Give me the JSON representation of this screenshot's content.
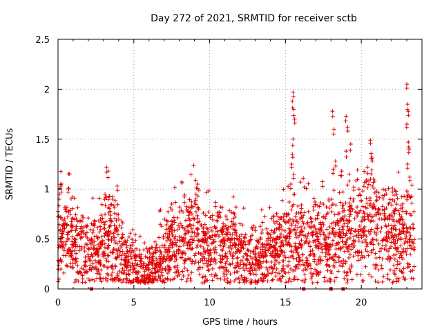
{
  "chart_data": {
    "type": "scatter",
    "title": "Day 272 of 2021, SRMTID for receiver sctb",
    "xlabel": "GPS time / hours",
    "ylabel": "SRMTID / TECUs",
    "xlim": [
      0,
      24
    ],
    "ylim": [
      0,
      2.5
    ],
    "xticks": [
      0,
      5,
      10,
      15,
      20
    ],
    "yticks": [
      0,
      0.5,
      1,
      1.5,
      2,
      2.5
    ],
    "xtick_labels": [
      "0",
      "5",
      "10",
      "15",
      "20"
    ],
    "ytick_labels": [
      "0",
      "0.5",
      "1",
      "1.5",
      "2",
      "2.5"
    ],
    "grid": true,
    "marker": "+",
    "series_color": "#e00000",
    "gap_markers_x": [
      2.2,
      16.2,
      18.0,
      18.8
    ],
    "trend": [
      [
        0.0,
        0.6
      ],
      [
        1.0,
        0.45
      ],
      [
        2.0,
        0.35
      ],
      [
        3.0,
        0.45
      ],
      [
        3.5,
        0.55
      ],
      [
        4.0,
        0.35
      ],
      [
        4.5,
        0.25
      ],
      [
        5.0,
        0.22
      ],
      [
        5.5,
        0.17
      ],
      [
        6.0,
        0.2
      ],
      [
        6.5,
        0.25
      ],
      [
        7.0,
        0.35
      ],
      [
        7.5,
        0.45
      ],
      [
        8.0,
        0.45
      ],
      [
        8.5,
        0.5
      ],
      [
        9.0,
        0.55
      ],
      [
        9.5,
        0.4
      ],
      [
        10.0,
        0.45
      ],
      [
        10.5,
        0.5
      ],
      [
        11.0,
        0.45
      ],
      [
        11.5,
        0.38
      ],
      [
        12.0,
        0.3
      ],
      [
        13.0,
        0.28
      ],
      [
        14.0,
        0.38
      ],
      [
        15.0,
        0.45
      ],
      [
        16.0,
        0.5
      ],
      [
        17.0,
        0.45
      ],
      [
        18.0,
        0.48
      ],
      [
        19.0,
        0.55
      ],
      [
        20.0,
        0.6
      ],
      [
        21.0,
        0.65
      ],
      [
        22.0,
        0.55
      ],
      [
        23.0,
        0.55
      ],
      [
        23.5,
        0.5
      ]
    ],
    "spikes": [
      {
        "x": 0.1,
        "y": 0.95
      },
      {
        "x": 0.2,
        "y": 1.03
      },
      {
        "x": 0.7,
        "y": 1.01
      },
      {
        "x": 3.2,
        "y": 1.22
      },
      {
        "x": 3.3,
        "y": 1.18
      },
      {
        "x": 3.1,
        "y": 0.95
      },
      {
        "x": 3.9,
        "y": 1.03
      },
      {
        "x": 7.5,
        "y": 0.85
      },
      {
        "x": 9.2,
        "y": 1.05
      },
      {
        "x": 9.1,
        "y": 0.95
      },
      {
        "x": 15.5,
        "y": 1.97
      },
      {
        "x": 15.45,
        "y": 1.88
      },
      {
        "x": 15.55,
        "y": 1.8
      },
      {
        "x": 15.6,
        "y": 1.7
      },
      {
        "x": 15.5,
        "y": 1.5
      },
      {
        "x": 15.45,
        "y": 1.35
      },
      {
        "x": 15.4,
        "y": 1.25
      },
      {
        "x": 15.55,
        "y": 1.15
      },
      {
        "x": 15.35,
        "y": 1.05
      },
      {
        "x": 18.1,
        "y": 1.78
      },
      {
        "x": 18.2,
        "y": 1.6
      },
      {
        "x": 18.3,
        "y": 1.28
      },
      {
        "x": 18.15,
        "y": 1.2
      },
      {
        "x": 18.7,
        "y": 1.18
      },
      {
        "x": 19.0,
        "y": 1.73
      },
      {
        "x": 19.1,
        "y": 1.62
      },
      {
        "x": 19.0,
        "y": 1.38
      },
      {
        "x": 19.3,
        "y": 1.45
      },
      {
        "x": 19.2,
        "y": 1.15
      },
      {
        "x": 19.5,
        "y": 1.02
      },
      {
        "x": 20.4,
        "y": 1.22
      },
      {
        "x": 20.6,
        "y": 1.49
      },
      {
        "x": 20.7,
        "y": 1.32
      },
      {
        "x": 20.8,
        "y": 1.1
      },
      {
        "x": 20.5,
        "y": 1.08
      },
      {
        "x": 21.0,
        "y": 0.98
      },
      {
        "x": 23.0,
        "y": 2.05
      },
      {
        "x": 23.05,
        "y": 1.85
      },
      {
        "x": 23.1,
        "y": 1.78
      },
      {
        "x": 23.0,
        "y": 1.65
      },
      {
        "x": 23.1,
        "y": 1.47
      },
      {
        "x": 23.15,
        "y": 1.4
      },
      {
        "x": 23.05,
        "y": 1.25
      },
      {
        "x": 23.2,
        "y": 1.12
      },
      {
        "x": 23.0,
        "y": 0.98
      }
    ],
    "points_per_hour": 110,
    "random_seed": 272
  }
}
